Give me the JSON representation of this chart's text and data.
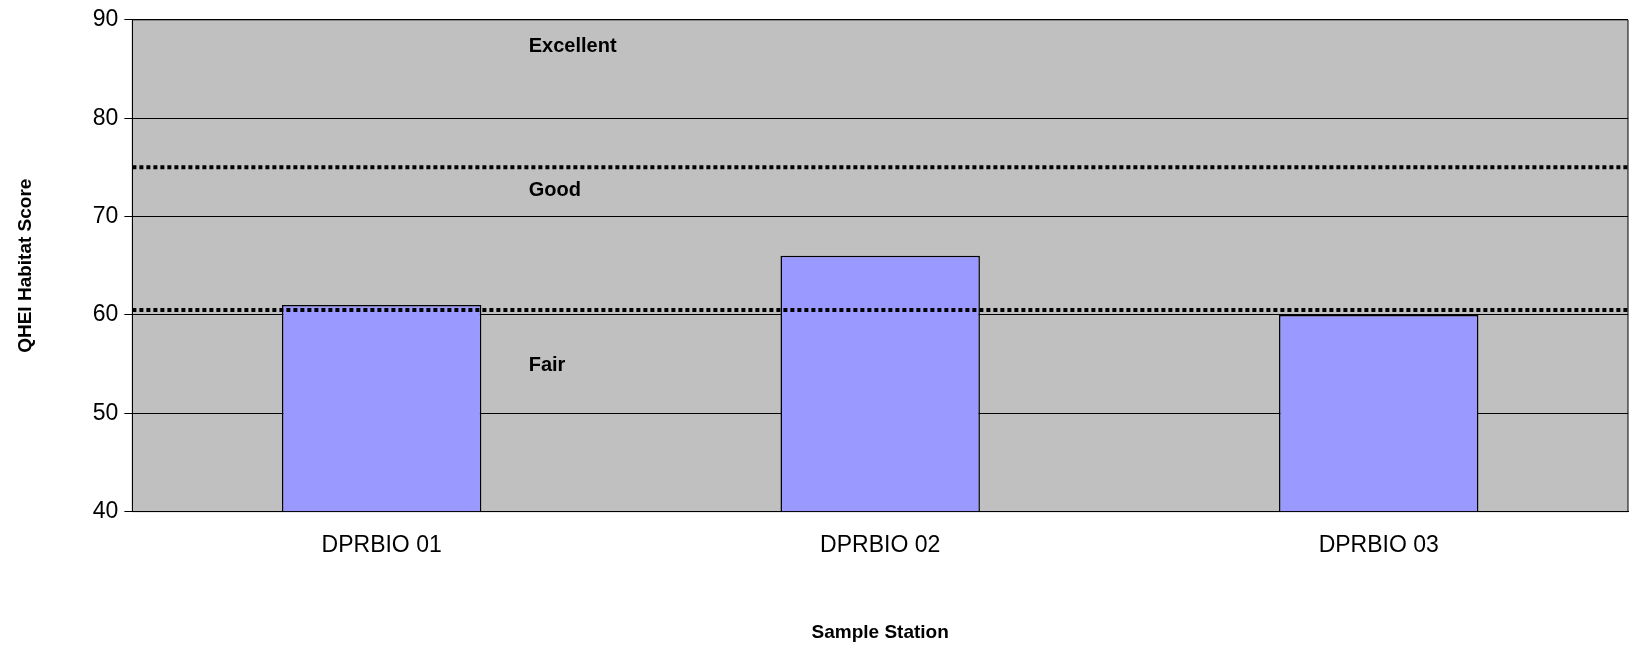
{
  "chart_data": {
    "type": "bar",
    "xlabel": "Sample Station",
    "ylabel": "QHEI Habitat Score",
    "categories": [
      "DPRBIO 01",
      "DPRBIO 02",
      "DPRBIO 03"
    ],
    "values": [
      61,
      66,
      60
    ],
    "color": "#9999ff",
    "ylim": [
      40,
      90
    ],
    "yticks": [
      40,
      50,
      60,
      70,
      80,
      90
    ],
    "grid": "y",
    "legend": false,
    "ref_lines": [
      {
        "axis": "y",
        "value": 75,
        "color": "#000000",
        "line_style": "dotted"
      },
      {
        "axis": "y",
        "value": 60.5,
        "color": "#000000",
        "line_style": "dotted"
      }
    ],
    "annotations": [
      "Excellent",
      "Good",
      "Fair"
    ]
  }
}
